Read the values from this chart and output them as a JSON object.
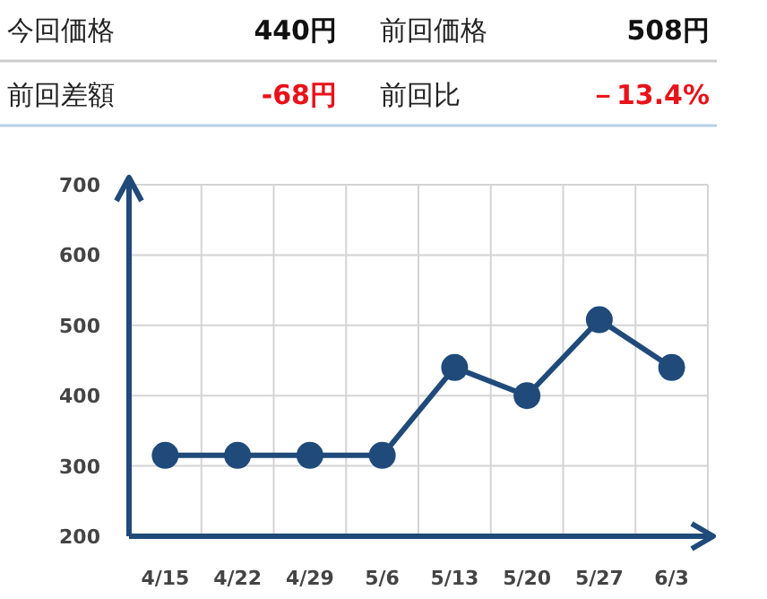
{
  "chart_data": {
    "type": "line",
    "annotations": [
      "今回価格",
      "440円",
      "前回価格",
      "508円",
      "前回差額",
      "-68円",
      "前回比",
      "－13.4%"
    ],
    "categories": [
      "4/15",
      "4/22",
      "4/29",
      "5/6",
      "5/13",
      "5/20",
      "5/27",
      "6/3"
    ],
    "series": [
      {
        "color": "#1f4a7a",
        "values": [
          315,
          315,
          315,
          315,
          440,
          400,
          508,
          440
        ]
      }
    ],
    "ylim": [
      200,
      700
    ],
    "yticks": [
      200,
      300,
      400,
      500,
      600,
      700
    ],
    "grid": true,
    "marker": "circle",
    "line_style": "solid"
  }
}
